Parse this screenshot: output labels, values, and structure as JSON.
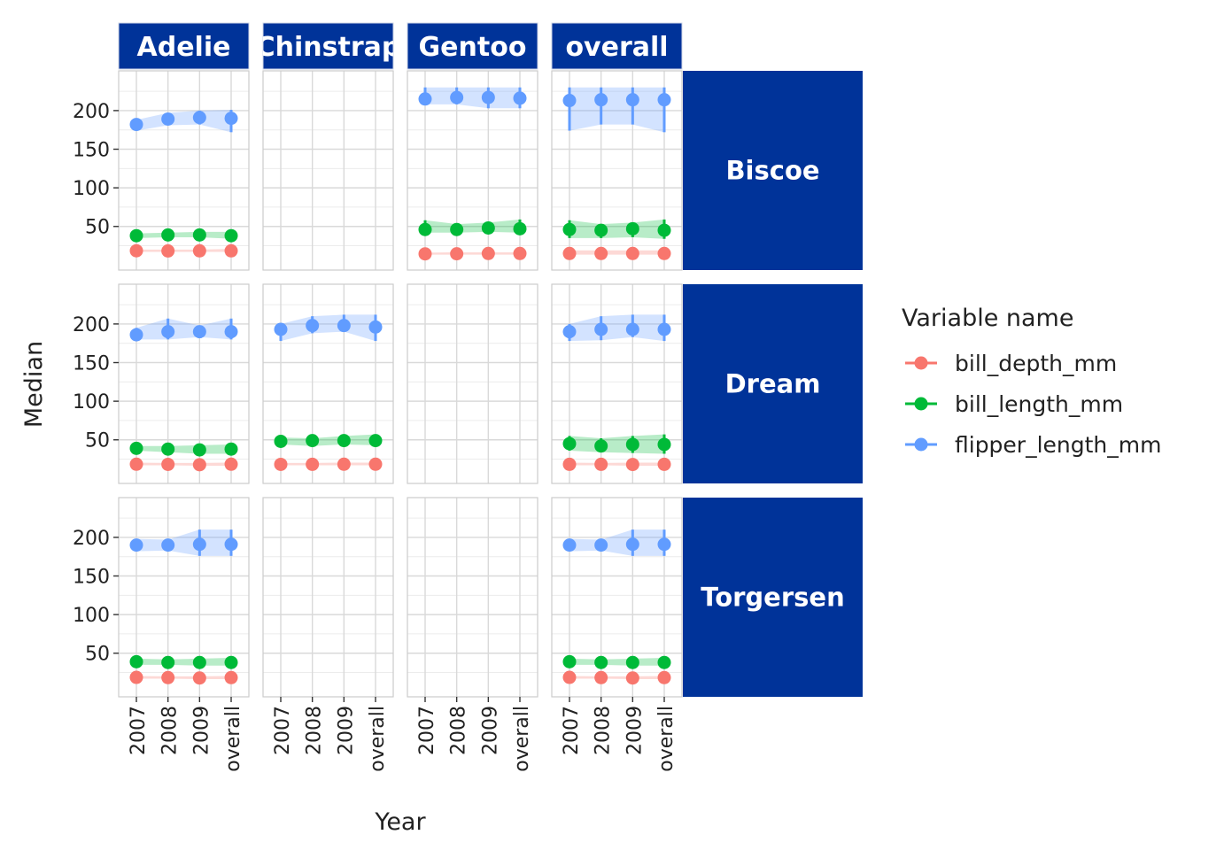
{
  "chart_data": {
    "type": "line",
    "xlabel": "Year",
    "ylabel": "Median",
    "x_categories": [
      "2007",
      "2008",
      "2009",
      "overall"
    ],
    "y_ticks": [
      50,
      100,
      150,
      200
    ],
    "ylim": [
      5,
      240
    ],
    "column_facets": [
      "Adelie",
      "Chinstrap",
      "Gentoo",
      "overall"
    ],
    "row_facets": [
      "Biscoe",
      "Dream",
      "Torgersen"
    ],
    "legend": {
      "title": "Variable name",
      "position": "right"
    },
    "grid": true,
    "strip_color": "#003399",
    "series": [
      {
        "name": "bill_depth_mm",
        "color": "#F8766D"
      },
      {
        "name": "bill_length_mm",
        "color": "#00BA38"
      },
      {
        "name": "flipper_length_mm",
        "color": "#619CFF"
      }
    ],
    "panels": [
      {
        "row": "Biscoe",
        "col": "Adelie",
        "series": {
          "bill_depth_mm": {
            "median": [
              18.5,
              18.3,
              18.4,
              18.4
            ],
            "lower": [
              17,
              17,
              17,
              17
            ],
            "upper": [
              20,
              20,
              20,
              21
            ]
          },
          "bill_length_mm": {
            "median": [
              38,
              39,
              39,
              38
            ],
            "lower": [
              35,
              36,
              36,
              34
            ],
            "upper": [
              41,
              42,
              43,
              43
            ]
          },
          "flipper_length_mm": {
            "median": [
              182,
              189,
              191,
              190
            ],
            "lower": [
              174,
              181,
              182,
              172
            ],
            "upper": [
              188,
              197,
              200,
              201
            ]
          }
        }
      },
      {
        "row": "Biscoe",
        "col": "Gentoo",
        "series": {
          "bill_depth_mm": {
            "median": [
              14.5,
              14.6,
              15,
              15
            ],
            "lower": [
              13.5,
              13.5,
              13.5,
              13.5
            ],
            "upper": [
              16,
              16.5,
              16.5,
              16.5
            ]
          },
          "bill_length_mm": {
            "median": [
              46,
              46,
              48,
              47
            ],
            "lower": [
              42,
              42,
              43,
              42
            ],
            "upper": [
              58,
              53,
              55,
              59
            ]
          },
          "flipper_length_mm": {
            "median": [
              215,
              217,
              217,
              216
            ],
            "lower": [
              208,
              208,
              203,
              203
            ],
            "upper": [
              230,
              230,
              230,
              230
            ]
          }
        }
      },
      {
        "row": "Biscoe",
        "col": "overall",
        "series": {
          "bill_depth_mm": {
            "median": [
              15,
              15,
              15,
              15
            ],
            "lower": [
              13.5,
              13.5,
              13.5,
              13.5
            ],
            "upper": [
              19,
              19,
              19,
              19
            ]
          },
          "bill_length_mm": {
            "median": [
              46,
              45,
              47,
              45
            ],
            "lower": [
              35,
              35,
              36,
              34
            ],
            "upper": [
              58,
              53,
              55,
              59
            ]
          },
          "flipper_length_mm": {
            "median": [
              213,
              214,
              214,
              214
            ],
            "lower": [
              174,
              182,
              182,
              172
            ],
            "upper": [
              230,
              230,
              230,
              230
            ]
          }
        }
      },
      {
        "row": "Dream",
        "col": "Adelie",
        "series": {
          "bill_depth_mm": {
            "median": [
              18.4,
              18.2,
              17.8,
              18.4
            ],
            "lower": [
              17,
              17,
              16.5,
              16.5
            ],
            "upper": [
              20.5,
              20,
              20,
              20.5
            ]
          },
          "bill_length_mm": {
            "median": [
              39,
              38,
              37,
              38
            ],
            "lower": [
              36,
              34,
              32,
              32
            ],
            "upper": [
              42,
              42,
              43,
              44
            ]
          },
          "flipper_length_mm": {
            "median": [
              186,
              190,
              190,
              190
            ],
            "lower": [
              180,
              180,
              183,
              180
            ],
            "upper": [
              195,
              207,
              198,
              207
            ]
          }
        }
      },
      {
        "row": "Dream",
        "col": "Chinstrap",
        "series": {
          "bill_depth_mm": {
            "median": [
              18.2,
              18.3,
              18.4,
              18.4
            ],
            "lower": [
              17,
              17,
              17,
              17
            ],
            "upper": [
              20,
              20,
              20.5,
              20.5
            ]
          },
          "bill_length_mm": {
            "median": [
              48,
              49,
              49,
              49
            ],
            "lower": [
              44,
              42,
              44,
              43
            ],
            "upper": [
              53,
              52,
              55,
              57
            ]
          },
          "flipper_length_mm": {
            "median": [
              193,
              198,
              198,
              196
            ],
            "lower": [
              178,
              188,
              190,
              178
            ],
            "upper": [
              200,
              210,
              212,
              212
            ]
          }
        }
      },
      {
        "row": "Dream",
        "col": "overall",
        "series": {
          "bill_depth_mm": {
            "median": [
              18.3,
              18.3,
              18.1,
              18.3
            ],
            "lower": [
              17,
              17,
              16.5,
              16.5
            ],
            "upper": [
              20.5,
              20,
              20.5,
              20.5
            ]
          },
          "bill_length_mm": {
            "median": [
              45,
              42,
              44,
              44
            ],
            "lower": [
              36,
              34,
              33,
              32
            ],
            "upper": [
              55,
              52,
              55,
              57
            ]
          },
          "flipper_length_mm": {
            "median": [
              190,
              193,
              193,
              193
            ],
            "lower": [
              178,
              179,
              183,
              178
            ],
            "upper": [
              200,
              210,
              212,
              212
            ]
          }
        }
      },
      {
        "row": "Torgersen",
        "col": "Adelie",
        "series": {
          "bill_depth_mm": {
            "median": [
              18.7,
              18.4,
              17.9,
              18.4
            ],
            "lower": [
              17,
              17,
              16.5,
              16.5
            ],
            "upper": [
              20.5,
              20,
              20,
              20.5
            ]
          },
          "bill_length_mm": {
            "median": [
              39,
              38,
              38,
              38
            ],
            "lower": [
              35,
              35,
              34,
              34
            ],
            "upper": [
              43,
              42,
              43,
              44
            ]
          },
          "flipper_length_mm": {
            "median": [
              190,
              190,
              191,
              191
            ],
            "lower": [
              182,
              183,
              176,
              176
            ],
            "upper": [
              198,
              197,
              210,
              210
            ]
          }
        }
      },
      {
        "row": "Torgersen",
        "col": "overall",
        "series": {
          "bill_depth_mm": {
            "median": [
              18.7,
              18.4,
              17.9,
              18.4
            ],
            "lower": [
              17,
              17,
              16.5,
              16.5
            ],
            "upper": [
              20.5,
              20,
              20,
              20.5
            ]
          },
          "bill_length_mm": {
            "median": [
              39,
              38,
              38,
              38
            ],
            "lower": [
              35,
              35,
              34,
              34
            ],
            "upper": [
              43,
              42,
              43,
              44
            ]
          },
          "flipper_length_mm": {
            "median": [
              190,
              190,
              191,
              191
            ],
            "lower": [
              182,
              183,
              176,
              176
            ],
            "upper": [
              198,
              197,
              210,
              210
            ]
          }
        }
      }
    ]
  }
}
